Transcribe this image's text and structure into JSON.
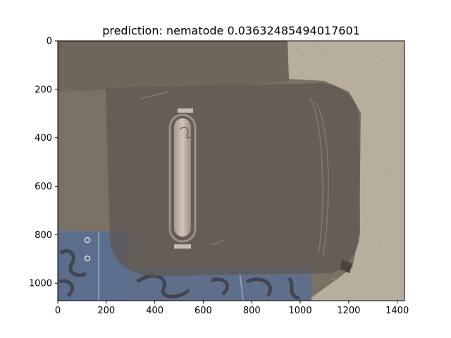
{
  "chart_data": {
    "type": "image",
    "title": "prediction: nematode 0.03632485494017601",
    "x_ticks": [
      0,
      200,
      400,
      600,
      800,
      1000,
      1200,
      1400
    ],
    "y_ticks": [
      0,
      200,
      400,
      600,
      800,
      1000
    ],
    "xlim": [
      0,
      1430
    ],
    "ylim": [
      1072,
      0
    ],
    "grid": false,
    "legend": "none"
  },
  "image_content": {
    "subject-icon": "backpack",
    "colors": {
      "overlay": "#7a7164",
      "wall": "#b8ae9e",
      "bag_dark": "#55504a",
      "strap": "#cdb9ae",
      "fabric_blue": "#5b6e8e"
    }
  }
}
